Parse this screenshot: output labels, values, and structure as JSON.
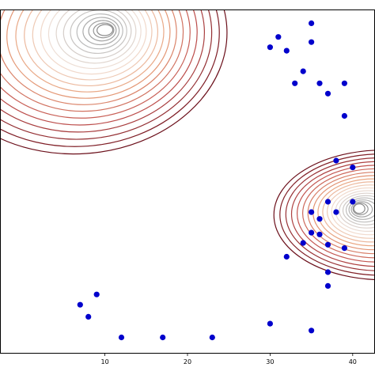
{
  "chart_data": {
    "type": "scatter",
    "title": "",
    "xlabel": "",
    "ylabel": "",
    "xlim": [
      -2.7,
      42.7
    ],
    "ylim": [
      0,
      10
    ],
    "grid": false,
    "x_ticks": [
      {
        "value": 10,
        "label": "10"
      },
      {
        "value": 20,
        "label": "20"
      },
      {
        "value": 30,
        "label": "30"
      },
      {
        "value": 40,
        "label": "40"
      }
    ],
    "series": [
      {
        "color": "#0000cc",
        "points": [
          {
            "x": 30,
            "y": 8.9
          },
          {
            "x": 31,
            "y": 9.2
          },
          {
            "x": 32,
            "y": 8.8
          },
          {
            "x": 35,
            "y": 9.6
          },
          {
            "x": 35,
            "y": 9.05
          },
          {
            "x": 34,
            "y": 8.2
          },
          {
            "x": 33,
            "y": 7.85
          },
          {
            "x": 36,
            "y": 7.85
          },
          {
            "x": 37,
            "y": 7.55
          },
          {
            "x": 39,
            "y": 7.85
          },
          {
            "x": 39,
            "y": 6.9
          },
          {
            "x": 38,
            "y": 5.6
          },
          {
            "x": 37,
            "y": 4.4
          },
          {
            "x": 35,
            "y": 4.1
          },
          {
            "x": 36,
            "y": 3.9
          },
          {
            "x": 38,
            "y": 4.1
          },
          {
            "x": 36,
            "y": 3.45
          },
          {
            "x": 35,
            "y": 3.5
          },
          {
            "x": 37,
            "y": 3.15
          },
          {
            "x": 34,
            "y": 3.2
          },
          {
            "x": 32,
            "y": 2.8
          },
          {
            "x": 37,
            "y": 2.35
          },
          {
            "x": 37,
            "y": 1.95
          },
          {
            "x": 39,
            "y": 3.05
          },
          {
            "x": 40,
            "y": 5.4
          },
          {
            "x": 40,
            "y": 4.4
          },
          {
            "x": 9,
            "y": 1.7
          },
          {
            "x": 8,
            "y": 1.05
          },
          {
            "x": 7,
            "y": 1.4
          },
          {
            "x": 12,
            "y": 0.45
          },
          {
            "x": 17,
            "y": 0.45
          },
          {
            "x": 23,
            "y": 0.45
          },
          {
            "x": 30,
            "y": 0.85
          },
          {
            "x": 35,
            "y": 0.65
          }
        ]
      }
    ],
    "contour_sets": [
      {
        "center": {
          "x": 10,
          "y": 9.4
        },
        "colormap": [
          "#6b0f1a",
          "#c0504d",
          "#e8a07a",
          "#f2e2d8",
          "#bdbdbd",
          "#8a8a8a"
        ],
        "levels": 22
      },
      {
        "center": {
          "x": 40.8,
          "y": 4.2
        },
        "colormap": [
          "#6b0f1a",
          "#c0504d",
          "#e8a07a",
          "#f2e2d8",
          "#bdbdbd",
          "#8a8a8a"
        ],
        "levels": 20
      }
    ]
  }
}
